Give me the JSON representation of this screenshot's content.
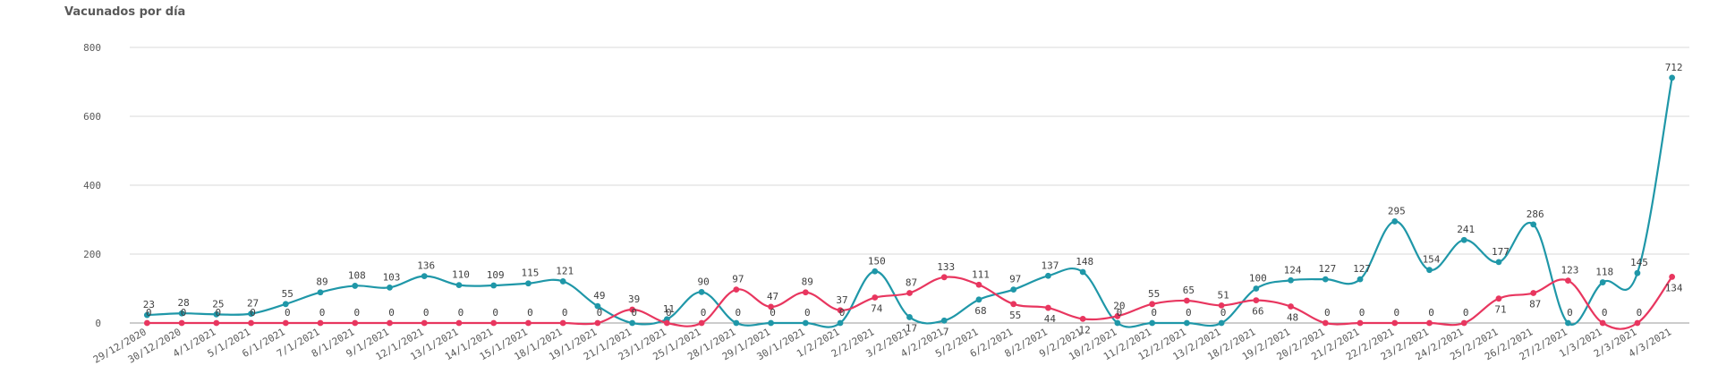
{
  "chart_data": {
    "type": "line",
    "title": "Vacunados por día",
    "xlabel": "",
    "ylabel": "",
    "ylim": [
      0,
      800
    ],
    "yticks": [
      0,
      200,
      400,
      600,
      800
    ],
    "grid": true,
    "categories": [
      "29/12/2020",
      "30/12/2020",
      "4/1/2021",
      "5/1/2021",
      "6/1/2021",
      "7/1/2021",
      "8/1/2021",
      "9/1/2021",
      "12/1/2021",
      "13/1/2021",
      "14/1/2021",
      "15/1/2021",
      "18/1/2021",
      "19/1/2021",
      "21/1/2021",
      "23/1/2021",
      "25/1/2021",
      "28/1/2021",
      "29/1/2021",
      "30/1/2021",
      "1/2/2021",
      "2/2/2021",
      "3/2/2021",
      "4/2/2021",
      "5/2/2021",
      "6/2/2021",
      "8/2/2021",
      "9/2/2021",
      "10/2/2021",
      "11/2/2021",
      "12/2/2021",
      "13/2/2021",
      "18/2/2021",
      "19/2/2021",
      "20/2/2021",
      "21/2/2021",
      "22/2/2021",
      "23/2/2021",
      "24/2/2021",
      "25/2/2021",
      "26/2/2021",
      "27/2/2021",
      "1/3/2021",
      "2/3/2021",
      "4/3/2021"
    ],
    "series": [
      {
        "color": "#1f97a8",
        "values": [
          23,
          28,
          25,
          27,
          55,
          89,
          108,
          103,
          136,
          110,
          109,
          115,
          121,
          49,
          0,
          11,
          90,
          0,
          0,
          0,
          0,
          150,
          17,
          7,
          68,
          97,
          137,
          148,
          0,
          0,
          0,
          0,
          100,
          124,
          127,
          127,
          295,
          154,
          241,
          177,
          286,
          0,
          118,
          145,
          712
        ]
      },
      {
        "color": "#e8365f",
        "values": [
          0,
          0,
          0,
          0,
          0,
          0,
          0,
          0,
          0,
          0,
          0,
          0,
          0,
          0,
          39,
          0,
          0,
          97,
          47,
          89,
          37,
          74,
          87,
          133,
          111,
          55,
          44,
          12,
          20,
          55,
          65,
          51,
          66,
          48,
          0,
          0,
          0,
          0,
          0,
          71,
          87,
          123,
          0,
          0,
          134
        ]
      }
    ]
  }
}
